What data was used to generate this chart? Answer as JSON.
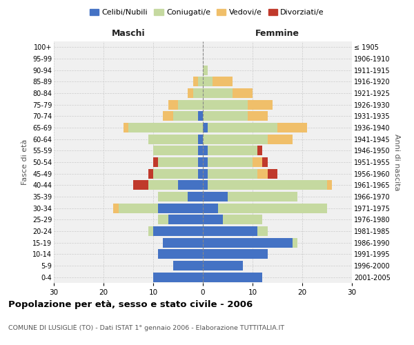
{
  "age_groups": [
    "0-4",
    "5-9",
    "10-14",
    "15-19",
    "20-24",
    "25-29",
    "30-34",
    "35-39",
    "40-44",
    "45-49",
    "50-54",
    "55-59",
    "60-64",
    "65-69",
    "70-74",
    "75-79",
    "80-84",
    "85-89",
    "90-94",
    "95-99",
    "100+"
  ],
  "birth_years": [
    "2001-2005",
    "1996-2000",
    "1991-1995",
    "1986-1990",
    "1981-1985",
    "1976-1980",
    "1971-1975",
    "1966-1970",
    "1961-1965",
    "1956-1960",
    "1951-1955",
    "1946-1950",
    "1941-1945",
    "1936-1940",
    "1931-1935",
    "1926-1930",
    "1921-1925",
    "1916-1920",
    "1911-1915",
    "1906-1910",
    "≤ 1905"
  ],
  "males": {
    "celibe": [
      10,
      6,
      9,
      8,
      10,
      7,
      9,
      3,
      5,
      1,
      1,
      1,
      1,
      0,
      1,
      0,
      0,
      0,
      0,
      0,
      0
    ],
    "coniugato": [
      0,
      0,
      0,
      0,
      1,
      2,
      8,
      6,
      6,
      9,
      8,
      9,
      10,
      15,
      5,
      5,
      2,
      1,
      0,
      0,
      0
    ],
    "vedovo": [
      0,
      0,
      0,
      0,
      0,
      0,
      1,
      0,
      0,
      0,
      0,
      0,
      0,
      1,
      2,
      2,
      1,
      1,
      0,
      0,
      0
    ],
    "divorziato": [
      0,
      0,
      0,
      0,
      0,
      0,
      0,
      0,
      3,
      1,
      1,
      0,
      0,
      0,
      0,
      0,
      0,
      0,
      0,
      0,
      0
    ]
  },
  "females": {
    "nubile": [
      12,
      8,
      13,
      18,
      11,
      4,
      3,
      5,
      1,
      1,
      1,
      1,
      0,
      1,
      0,
      0,
      0,
      0,
      0,
      0,
      0
    ],
    "coniugata": [
      0,
      0,
      0,
      1,
      2,
      8,
      22,
      14,
      24,
      10,
      9,
      10,
      13,
      14,
      9,
      9,
      6,
      2,
      1,
      0,
      0
    ],
    "vedova": [
      0,
      0,
      0,
      0,
      0,
      0,
      0,
      0,
      1,
      2,
      2,
      0,
      5,
      6,
      4,
      5,
      4,
      4,
      0,
      0,
      0
    ],
    "divorziata": [
      0,
      0,
      0,
      0,
      0,
      0,
      0,
      0,
      0,
      2,
      1,
      1,
      0,
      0,
      0,
      0,
      0,
      0,
      0,
      0,
      0
    ]
  },
  "colors": {
    "celibe": "#4472C4",
    "coniugato": "#c5d9a0",
    "vedovo": "#f0bf6a",
    "divorziato": "#c0392b"
  },
  "xlim": 30,
  "title": "Popolazione per età, sesso e stato civile - 2006",
  "subtitle": "COMUNE DI LUSIGLIÈ (TO) - Dati ISTAT 1° gennaio 2006 - Elaborazione TUTTITALIA.IT",
  "xlabel_left": "Maschi",
  "xlabel_right": "Femmine",
  "ylabel_left": "Fasce di età",
  "ylabel_right": "Anni di nascita",
  "bg_color": "#ffffff",
  "plot_bg_color": "#f0f0f0",
  "grid_color": "#cccccc"
}
